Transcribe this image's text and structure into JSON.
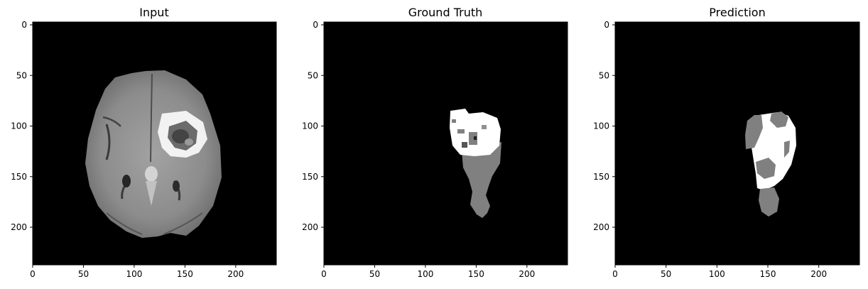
{
  "figure": {
    "panels": [
      {
        "title": "Input"
      },
      {
        "title": "Ground Truth"
      },
      {
        "title": "Prediction"
      }
    ],
    "x_ticks": [
      "0",
      "50",
      "100",
      "150",
      "200"
    ],
    "y_ticks": [
      "0",
      "50",
      "100",
      "150",
      "200"
    ],
    "image_size": [
      240,
      240
    ],
    "colors": {
      "background": "#000000",
      "mask_gray": "#808080",
      "mask_white": "#ffffff",
      "brain_tissue": "#8e8e8e"
    }
  }
}
